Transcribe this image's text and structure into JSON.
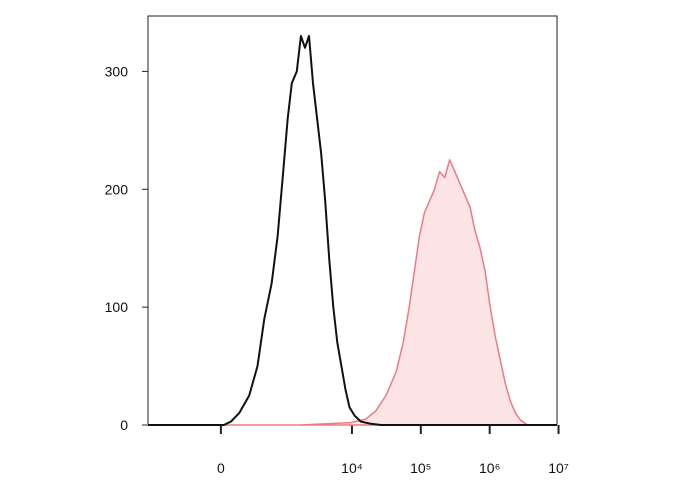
{
  "chart_data": {
    "type": "line",
    "xscale": "biexponential",
    "linear_width": 250,
    "xlim": [
      -1420,
      9500000
    ],
    "ylim": [
      0,
      347
    ],
    "xticks": [
      0,
      {
        "value": 10000,
        "label": "10⁴"
      },
      {
        "value": 100000,
        "label": "10⁵"
      },
      {
        "value": 1000000,
        "label": "10⁶"
      },
      {
        "value": 10000000,
        "label": "10⁷"
      }
    ],
    "yticks": [
      0,
      100,
      200,
      300
    ],
    "series": [
      {
        "color": "#f07a84",
        "fill": "#fde4e5",
        "x": [
          -1420,
          1745,
          9525,
          15850,
          22225,
          31175,
          43750,
          55450,
          67900,
          80475,
          95300,
          112850,
          133750,
          158250,
          187500,
          222000,
          263000,
          311500,
          369000,
          437000,
          517500,
          613000,
          726000,
          860000,
          1018500,
          1206500,
          1429000,
          1692250,
          2005000,
          2375000,
          2812500,
          3562500,
          9500000
        ],
        "values": [
          0,
          0,
          2,
          5,
          12,
          25,
          45,
          70,
          100,
          130,
          160,
          180,
          190,
          200,
          215,
          210,
          225,
          215,
          205,
          195,
          185,
          165,
          150,
          130,
          100,
          75,
          55,
          35,
          20,
          10,
          4,
          0,
          0
        ]
      },
      {
        "color": "#111111",
        "x": [
          -1420,
          25,
          86,
          162,
          274,
          388,
          505,
          657,
          814,
          970,
          1155,
          1326,
          1574,
          1807,
          2072,
          2372,
          2717,
          3115,
          3568,
          4087,
          4678,
          5357,
          6132,
          7030,
          8048,
          9210,
          10918,
          13375,
          18775,
          26325,
          9500000
        ],
        "values": [
          0,
          0,
          3,
          10,
          25,
          50,
          90,
          120,
          160,
          210,
          260,
          290,
          300,
          330,
          320,
          330,
          290,
          260,
          230,
          190,
          140,
          100,
          70,
          50,
          30,
          15,
          8,
          3,
          1,
          0,
          0
        ]
      }
    ]
  }
}
